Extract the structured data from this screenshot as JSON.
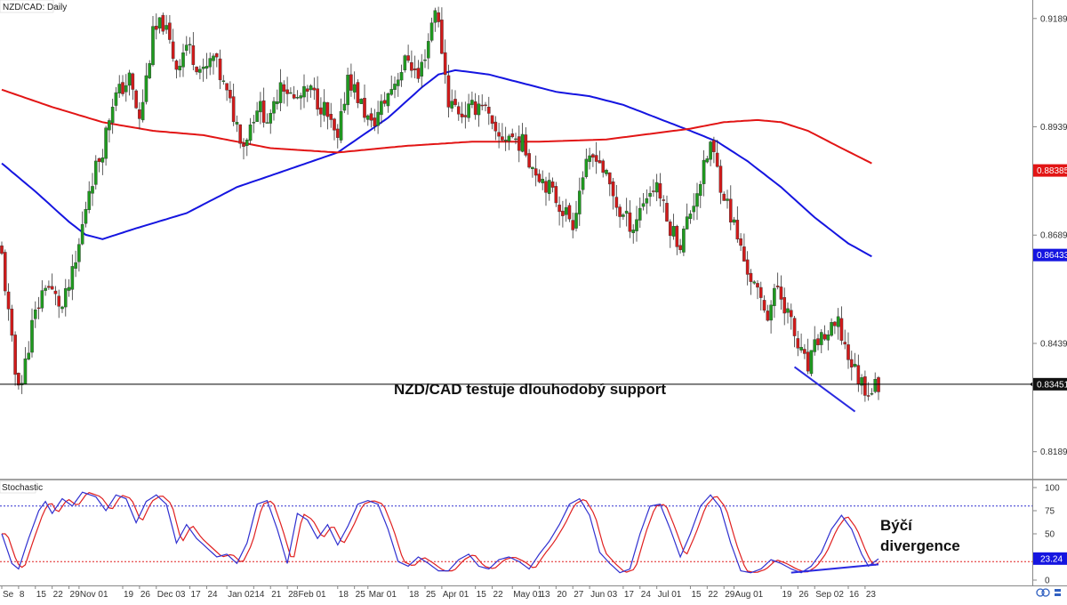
{
  "chart_data": {
    "type": "candlestick",
    "title": "NZD/CAD: Daily",
    "symbol": "NZD/CAD",
    "timeframe": "Daily",
    "price_ylim": [
      0.8125,
      0.9232
    ],
    "price_ticks": [
      "0.91893",
      "0.89393",
      "0.86893",
      "0.84393",
      "0.81893"
    ],
    "x_ticks": [
      {
        "label": "Se",
        "index": 0
      },
      {
        "label": "8",
        "index": 5
      },
      {
        "label": "15",
        "index": 10
      },
      {
        "label": "22",
        "index": 15
      },
      {
        "label": "29",
        "index": 20
      },
      {
        "label": "Nov 01",
        "index": 23
      },
      {
        "label": "19",
        "index": 36
      },
      {
        "label": "26",
        "index": 41
      },
      {
        "label": "Dec 03",
        "index": 46
      },
      {
        "label": "17",
        "index": 56
      },
      {
        "label": "24",
        "index": 61
      },
      {
        "label": "Jan 02",
        "index": 67
      },
      {
        "label": "14",
        "index": 75
      },
      {
        "label": "21",
        "index": 80
      },
      {
        "label": "28",
        "index": 85
      },
      {
        "label": "Feb 01",
        "index": 88
      },
      {
        "label": "18",
        "index": 100
      },
      {
        "label": "25",
        "index": 105
      },
      {
        "label": "Mar 01",
        "index": 109
      },
      {
        "label": "18",
        "index": 121
      },
      {
        "label": "25",
        "index": 126
      },
      {
        "label": "Apr 01",
        "index": 131
      },
      {
        "label": "15",
        "index": 141
      },
      {
        "label": "22",
        "index": 146
      },
      {
        "label": "May 01",
        "index": 152
      },
      {
        "label": "13",
        "index": 160
      },
      {
        "label": "20",
        "index": 165
      },
      {
        "label": "27",
        "index": 170
      },
      {
        "label": "Jun 03",
        "index": 175
      },
      {
        "label": "17",
        "index": 185
      },
      {
        "label": "24",
        "index": 190
      },
      {
        "label": "Jul 01",
        "index": 195
      },
      {
        "label": "15",
        "index": 205
      },
      {
        "label": "22",
        "index": 210
      },
      {
        "label": "29",
        "index": 215
      },
      {
        "label": "Aug 01",
        "index": 218
      },
      {
        "label": "19",
        "index": 232
      },
      {
        "label": "26",
        "index": 237
      },
      {
        "label": "Sep 02",
        "index": 242
      },
      {
        "label": "16",
        "index": 252
      },
      {
        "label": "23",
        "index": 257
      }
    ],
    "candle_count": 262,
    "close_keypoints": [
      [
        0,
        0.864
      ],
      [
        4,
        0.837
      ],
      [
        6,
        0.835
      ],
      [
        9,
        0.848
      ],
      [
        13,
        0.858
      ],
      [
        18,
        0.852
      ],
      [
        22,
        0.862
      ],
      [
        26,
        0.88
      ],
      [
        30,
        0.889
      ],
      [
        33,
        0.9
      ],
      [
        38,
        0.905
      ],
      [
        41,
        0.895
      ],
      [
        45,
        0.915
      ],
      [
        48,
        0.918
      ],
      [
        52,
        0.908
      ],
      [
        55,
        0.913
      ],
      [
        60,
        0.906
      ],
      [
        63,
        0.91
      ],
      [
        68,
        0.899
      ],
      [
        72,
        0.89
      ],
      [
        76,
        0.899
      ],
      [
        80,
        0.895
      ],
      [
        83,
        0.905
      ],
      [
        87,
        0.9
      ],
      [
        92,
        0.902
      ],
      [
        96,
        0.898
      ],
      [
        100,
        0.89
      ],
      [
        103,
        0.906
      ],
      [
        107,
        0.899
      ],
      [
        110,
        0.894
      ],
      [
        114,
        0.9
      ],
      [
        118,
        0.906
      ],
      [
        121,
        0.91
      ],
      [
        124,
        0.905
      ],
      [
        127,
        0.914
      ],
      [
        129,
        0.922
      ],
      [
        131,
        0.912
      ],
      [
        133,
        0.9
      ],
      [
        137,
        0.897
      ],
      [
        140,
        0.898
      ],
      [
        143,
        0.9
      ],
      [
        147,
        0.891
      ],
      [
        151,
        0.892
      ],
      [
        155,
        0.89
      ],
      [
        158,
        0.885
      ],
      [
        162,
        0.881
      ],
      [
        166,
        0.876
      ],
      [
        170,
        0.872
      ],
      [
        173,
        0.883
      ],
      [
        177,
        0.888
      ],
      [
        180,
        0.882
      ],
      [
        184,
        0.874
      ],
      [
        188,
        0.871
      ],
      [
        191,
        0.877
      ],
      [
        195,
        0.881
      ],
      [
        198,
        0.872
      ],
      [
        202,
        0.867
      ],
      [
        206,
        0.877
      ],
      [
        209,
        0.884
      ],
      [
        211,
        0.89
      ],
      [
        214,
        0.881
      ],
      [
        218,
        0.871
      ],
      [
        221,
        0.863
      ],
      [
        225,
        0.855
      ],
      [
        228,
        0.851
      ],
      [
        231,
        0.857
      ],
      [
        234,
        0.851
      ],
      [
        237,
        0.843
      ],
      [
        240,
        0.838
      ],
      [
        243,
        0.845
      ],
      [
        246,
        0.846
      ],
      [
        249,
        0.848
      ],
      [
        252,
        0.841
      ],
      [
        255,
        0.836
      ],
      [
        258,
        0.833
      ],
      [
        261,
        0.8345
      ]
    ],
    "moving_averages": [
      {
        "color": "#1515e0",
        "points": [
          [
            0,
            0.8855
          ],
          [
            10,
            0.879
          ],
          [
            20,
            0.872
          ],
          [
            25,
            0.869
          ],
          [
            30,
            0.868
          ],
          [
            40,
            0.8705
          ],
          [
            55,
            0.874
          ],
          [
            70,
            0.88
          ],
          [
            85,
            0.884
          ],
          [
            100,
            0.888
          ],
          [
            115,
            0.896
          ],
          [
            125,
            0.903
          ],
          [
            130,
            0.906
          ],
          [
            135,
            0.907
          ],
          [
            145,
            0.906
          ],
          [
            155,
            0.904
          ],
          [
            165,
            0.902
          ],
          [
            175,
            0.901
          ],
          [
            185,
            0.899
          ],
          [
            195,
            0.896
          ],
          [
            205,
            0.893
          ],
          [
            213,
            0.8905
          ],
          [
            222,
            0.886
          ],
          [
            232,
            0.88
          ],
          [
            242,
            0.873
          ],
          [
            252,
            0.867
          ],
          [
            259,
            0.864
          ]
        ]
      },
      {
        "color": "#e21515",
        "points": [
          [
            0,
            0.9025
          ],
          [
            15,
            0.8985
          ],
          [
            30,
            0.895
          ],
          [
            45,
            0.893
          ],
          [
            60,
            0.892
          ],
          [
            80,
            0.889
          ],
          [
            100,
            0.888
          ],
          [
            120,
            0.8895
          ],
          [
            140,
            0.8905
          ],
          [
            160,
            0.8905
          ],
          [
            180,
            0.891
          ],
          [
            195,
            0.8925
          ],
          [
            205,
            0.8935
          ],
          [
            215,
            0.895
          ],
          [
            225,
            0.8955
          ],
          [
            232,
            0.895
          ],
          [
            240,
            0.893
          ],
          [
            250,
            0.889
          ],
          [
            259,
            0.8855
          ]
        ]
      }
    ],
    "current_price": 0.83451,
    "price_labels": [
      {
        "text": "0.88385",
        "value": 0.88385,
        "color": "#e21515"
      },
      {
        "text": "0.86433",
        "value": 0.86433,
        "color": "#1515e0"
      },
      {
        "text": "0.83451",
        "value": 0.83451,
        "color": "#111111"
      }
    ],
    "support_line": {
      "value": 0.83451,
      "color": "#000000"
    },
    "price_trendline": {
      "from": [
        236,
        0.8385
      ],
      "to": [
        254,
        0.8282
      ],
      "color": "#2a2ae0"
    },
    "price_annotation": {
      "text": "NZD/CAD testuje dlouhodobý support",
      "index": 166,
      "value": 0.8385
    },
    "stochastic": {
      "label": "Stochastic",
      "ylim": [
        0,
        100
      ],
      "ticks": [
        "100",
        "75",
        "50",
        "25",
        "0"
      ],
      "level_lines": [
        80,
        20
      ],
      "value_label": "23.24",
      "k_color": "#3030d0",
      "d_color": "#e02020",
      "keypoints": [
        [
          0,
          50
        ],
        [
          3,
          18
        ],
        [
          5,
          12
        ],
        [
          8,
          45
        ],
        [
          11,
          75
        ],
        [
          13,
          85
        ],
        [
          15,
          72
        ],
        [
          18,
          88
        ],
        [
          21,
          80
        ],
        [
          24,
          95
        ],
        [
          28,
          90
        ],
        [
          31,
          75
        ],
        [
          34,
          92
        ],
        [
          37,
          88
        ],
        [
          40,
          62
        ],
        [
          43,
          85
        ],
        [
          46,
          92
        ],
        [
          49,
          82
        ],
        [
          52,
          40
        ],
        [
          55,
          60
        ],
        [
          58,
          45
        ],
        [
          61,
          35
        ],
        [
          64,
          25
        ],
        [
          67,
          28
        ],
        [
          70,
          18
        ],
        [
          73,
          40
        ],
        [
          76,
          82
        ],
        [
          79,
          86
        ],
        [
          82,
          55
        ],
        [
          85,
          18
        ],
        [
          88,
          72
        ],
        [
          91,
          65
        ],
        [
          94,
          45
        ],
        [
          97,
          60
        ],
        [
          100,
          38
        ],
        [
          103,
          58
        ],
        [
          106,
          82
        ],
        [
          109,
          86
        ],
        [
          112,
          82
        ],
        [
          115,
          55
        ],
        [
          118,
          20
        ],
        [
          121,
          15
        ],
        [
          124,
          25
        ],
        [
          127,
          18
        ],
        [
          130,
          10
        ],
        [
          133,
          10
        ],
        [
          136,
          22
        ],
        [
          139,
          28
        ],
        [
          142,
          15
        ],
        [
          145,
          12
        ],
        [
          148,
          22
        ],
        [
          151,
          25
        ],
        [
          154,
          20
        ],
        [
          157,
          12
        ],
        [
          160,
          28
        ],
        [
          163,
          42
        ],
        [
          166,
          60
        ],
        [
          169,
          82
        ],
        [
          172,
          88
        ],
        [
          175,
          70
        ],
        [
          178,
          30
        ],
        [
          181,
          18
        ],
        [
          184,
          8
        ],
        [
          187,
          12
        ],
        [
          190,
          50
        ],
        [
          193,
          80
        ],
        [
          196,
          82
        ],
        [
          199,
          55
        ],
        [
          202,
          25
        ],
        [
          205,
          50
        ],
        [
          208,
          80
        ],
        [
          211,
          92
        ],
        [
          214,
          78
        ],
        [
          217,
          40
        ],
        [
          220,
          10
        ],
        [
          223,
          8
        ],
        [
          226,
          12
        ],
        [
          229,
          22
        ],
        [
          232,
          18
        ],
        [
          235,
          12
        ],
        [
          238,
          8
        ],
        [
          241,
          15
        ],
        [
          244,
          30
        ],
        [
          247,
          55
        ],
        [
          250,
          70
        ],
        [
          253,
          55
        ],
        [
          256,
          28
        ],
        [
          258,
          15
        ],
        [
          261,
          23
        ]
      ],
      "trendline": {
        "from": [
          235,
          8
        ],
        "to": [
          261,
          17
        ],
        "color": "#2a2ae0"
      },
      "annotation_lines": [
        "Býčí",
        "divergence"
      ]
    }
  }
}
